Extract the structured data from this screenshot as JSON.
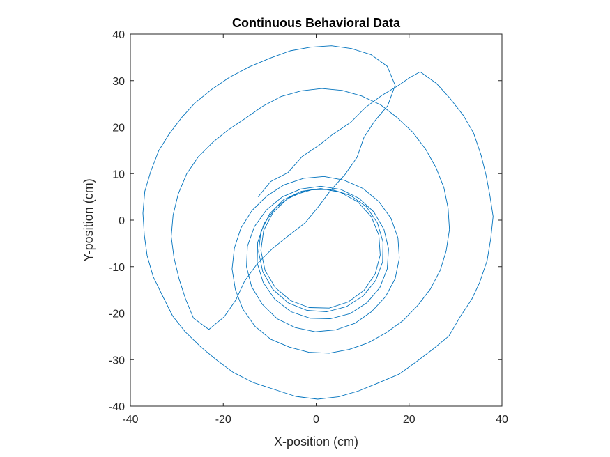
{
  "chart_data": {
    "type": "line",
    "title": "Continuous Behavioral Data",
    "xlabel": "X-position (cm)",
    "ylabel": "Y-position (cm)",
    "xlim": [
      -40,
      40
    ],
    "ylim": [
      -40,
      40
    ],
    "xticks": [
      -40,
      -20,
      0,
      20,
      40
    ],
    "yticks": [
      -40,
      -30,
      -20,
      -10,
      0,
      10,
      20,
      30,
      40
    ],
    "grid": false,
    "legend": "none",
    "series": [
      {
        "color": "#0072BD",
        "points": [
          [
            -12.5,
            5.0
          ],
          [
            -9.8,
            8.3
          ],
          [
            -6.1,
            10.2
          ],
          [
            -3.0,
            13.7
          ],
          [
            0.6,
            16.1
          ],
          [
            3.5,
            18.4
          ],
          [
            7.4,
            21.0
          ],
          [
            10.7,
            24.3
          ],
          [
            14.1,
            26.8
          ],
          [
            17.6,
            28.9
          ],
          [
            20.2,
            30.7
          ],
          [
            22.4,
            31.9
          ],
          [
            25.9,
            29.4
          ],
          [
            28.8,
            26.2
          ],
          [
            31.7,
            22.5
          ],
          [
            33.9,
            18.7
          ],
          [
            35.5,
            14.0
          ],
          [
            36.6,
            9.6
          ],
          [
            37.4,
            5.3
          ],
          [
            38.1,
            0.8
          ],
          [
            37.6,
            -3.9
          ],
          [
            36.8,
            -8.7
          ],
          [
            35.2,
            -13.4
          ],
          [
            33.5,
            -17.0
          ],
          [
            31.0,
            -20.8
          ],
          [
            28.6,
            -24.9
          ],
          [
            25.2,
            -27.7
          ],
          [
            21.5,
            -30.5
          ],
          [
            17.9,
            -33.1
          ],
          [
            13.4,
            -35.0
          ],
          [
            9.2,
            -36.7
          ],
          [
            4.8,
            -38.0
          ],
          [
            0.3,
            -38.5
          ],
          [
            -4.4,
            -37.9
          ],
          [
            -9.0,
            -36.4
          ],
          [
            -13.6,
            -34.9
          ],
          [
            -17.9,
            -32.7
          ],
          [
            -21.4,
            -30.1
          ],
          [
            -24.8,
            -27.3
          ],
          [
            -28.2,
            -24.0
          ],
          [
            -30.9,
            -20.6
          ],
          [
            -33.0,
            -16.4
          ],
          [
            -35.1,
            -12.1
          ],
          [
            -36.4,
            -7.6
          ],
          [
            -37.0,
            -3.2
          ],
          [
            -37.3,
            1.5
          ],
          [
            -36.9,
            6.2
          ],
          [
            -35.6,
            10.5
          ],
          [
            -33.9,
            14.9
          ],
          [
            -31.6,
            18.6
          ],
          [
            -29.0,
            22.0
          ],
          [
            -26.1,
            25.2
          ],
          [
            -22.5,
            28.1
          ],
          [
            -18.7,
            30.7
          ],
          [
            -14.3,
            33.0
          ],
          [
            -10.0,
            34.8
          ],
          [
            -5.6,
            36.4
          ],
          [
            -1.2,
            37.2
          ],
          [
            3.3,
            37.5
          ],
          [
            7.6,
            36.9
          ],
          [
            11.8,
            35.6
          ],
          [
            15.3,
            33.1
          ],
          [
            17.0,
            29.0
          ],
          [
            15.4,
            24.6
          ],
          [
            12.6,
            21.3
          ],
          [
            10.3,
            17.8
          ],
          [
            8.8,
            13.5
          ],
          [
            6.2,
            9.8
          ],
          [
            3.1,
            6.4
          ],
          [
            0.5,
            2.9
          ],
          [
            -2.4,
            -0.6
          ],
          [
            -5.9,
            -3.3
          ],
          [
            -9.4,
            -6.1
          ],
          [
            -12.7,
            -9.4
          ],
          [
            -15.4,
            -13.1
          ],
          [
            -17.3,
            -17.2
          ],
          [
            -19.8,
            -20.8
          ],
          [
            -23.1,
            -23.5
          ],
          [
            -26.4,
            -21.1
          ],
          [
            -28.1,
            -17.0
          ],
          [
            -29.5,
            -12.7
          ],
          [
            -30.6,
            -8.1
          ],
          [
            -31.2,
            -3.5
          ],
          [
            -30.8,
            1.1
          ],
          [
            -29.7,
            5.6
          ],
          [
            -27.9,
            9.9
          ],
          [
            -25.4,
            13.6
          ],
          [
            -22.2,
            16.8
          ],
          [
            -18.8,
            19.5
          ],
          [
            -15.2,
            21.9
          ],
          [
            -11.5,
            24.5
          ],
          [
            -7.5,
            26.6
          ],
          [
            -3.2,
            27.8
          ],
          [
            1.2,
            28.3
          ],
          [
            5.6,
            27.9
          ],
          [
            9.8,
            26.7
          ],
          [
            13.9,
            24.8
          ],
          [
            17.5,
            22.0
          ],
          [
            20.8,
            18.9
          ],
          [
            23.6,
            15.2
          ],
          [
            25.8,
            11.3
          ],
          [
            27.5,
            7.0
          ],
          [
            28.4,
            2.6
          ],
          [
            28.7,
            -2.0
          ],
          [
            28.0,
            -6.6
          ],
          [
            26.7,
            -10.8
          ],
          [
            24.6,
            -14.8
          ],
          [
            21.9,
            -18.3
          ],
          [
            18.7,
            -21.6
          ],
          [
            15.1,
            -24.2
          ],
          [
            11.2,
            -26.4
          ],
          [
            7.1,
            -27.8
          ],
          [
            2.8,
            -28.6
          ],
          [
            -1.6,
            -28.4
          ],
          [
            -5.8,
            -27.3
          ],
          [
            -9.8,
            -25.6
          ],
          [
            -13.2,
            -22.8
          ],
          [
            -15.8,
            -19.1
          ],
          [
            -17.4,
            -14.9
          ],
          [
            -18.1,
            -10.5
          ],
          [
            -17.6,
            -6.0
          ],
          [
            -16.2,
            -1.7
          ],
          [
            -13.8,
            2.1
          ],
          [
            -10.6,
            5.2
          ],
          [
            -6.9,
            7.6
          ],
          [
            -2.7,
            9.0
          ],
          [
            1.7,
            9.4
          ],
          [
            6.0,
            8.6
          ],
          [
            10.1,
            6.8
          ],
          [
            13.5,
            4.0
          ],
          [
            16.1,
            0.4
          ],
          [
            17.6,
            -3.8
          ],
          [
            17.9,
            -8.2
          ],
          [
            17.0,
            -12.6
          ],
          [
            14.9,
            -16.5
          ],
          [
            11.9,
            -19.7
          ],
          [
            8.3,
            -22.2
          ],
          [
            4.2,
            -23.6
          ],
          [
            -0.2,
            -24.0
          ],
          [
            -4.5,
            -23.1
          ],
          [
            -8.4,
            -21.2
          ],
          [
            -11.6,
            -18.1
          ],
          [
            -13.9,
            -14.3
          ],
          [
            -15.0,
            -10.0
          ],
          [
            -14.8,
            -5.6
          ],
          [
            -13.3,
            -1.4
          ],
          [
            -10.7,
            2.2
          ],
          [
            -7.3,
            5.0
          ],
          [
            -3.3,
            6.7
          ],
          [
            1.0,
            7.3
          ],
          [
            5.3,
            6.6
          ],
          [
            9.2,
            4.7
          ],
          [
            12.4,
            1.8
          ],
          [
            14.6,
            -2.0
          ],
          [
            15.6,
            -6.2
          ],
          [
            15.3,
            -10.5
          ],
          [
            13.7,
            -14.5
          ],
          [
            10.9,
            -17.8
          ],
          [
            7.3,
            -20.1
          ],
          [
            3.1,
            -21.2
          ],
          [
            -1.3,
            -21.1
          ],
          [
            -5.4,
            -19.7
          ],
          [
            -8.9,
            -17.0
          ],
          [
            -11.4,
            -13.4
          ],
          [
            -12.7,
            -9.2
          ],
          [
            -12.6,
            -4.8
          ],
          [
            -11.2,
            -0.7
          ],
          [
            -8.6,
            2.8
          ],
          [
            -5.1,
            5.3
          ],
          [
            -1.0,
            6.5
          ],
          [
            3.3,
            6.6
          ],
          [
            7.4,
            5.3
          ],
          [
            10.8,
            2.9
          ],
          [
            13.2,
            -0.6
          ],
          [
            14.4,
            -4.7
          ],
          [
            14.3,
            -9.0
          ],
          [
            12.8,
            -13.0
          ],
          [
            10.1,
            -16.3
          ],
          [
            6.5,
            -18.6
          ],
          [
            2.3,
            -19.7
          ],
          [
            -2.0,
            -19.4
          ],
          [
            -6.0,
            -17.8
          ],
          [
            -9.3,
            -14.9
          ],
          [
            -11.5,
            -11.1
          ],
          [
            -12.4,
            -6.8
          ],
          [
            -11.9,
            -2.5
          ],
          [
            -10.0,
            1.4
          ],
          [
            -7.0,
            4.4
          ],
          [
            -3.2,
            6.2
          ],
          [
            1.0,
            6.8
          ],
          [
            5.2,
            6.0
          ],
          [
            9.0,
            3.9
          ],
          [
            11.9,
            0.7
          ],
          [
            13.5,
            -3.2
          ],
          [
            13.8,
            -7.5
          ],
          [
            12.7,
            -11.6
          ],
          [
            10.3,
            -15.1
          ],
          [
            6.9,
            -17.6
          ],
          [
            2.8,
            -18.9
          ],
          [
            -1.5,
            -18.8
          ],
          [
            -5.5,
            -17.3
          ],
          [
            -8.8,
            -14.5
          ],
          [
            -11.0,
            -10.8
          ],
          [
            -11.9,
            -6.5
          ],
          [
            -11.3,
            -2.2
          ],
          [
            -9.3,
            1.6
          ],
          [
            -6.2,
            4.6
          ],
          [
            -2.3,
            6.3
          ]
        ]
      }
    ]
  }
}
